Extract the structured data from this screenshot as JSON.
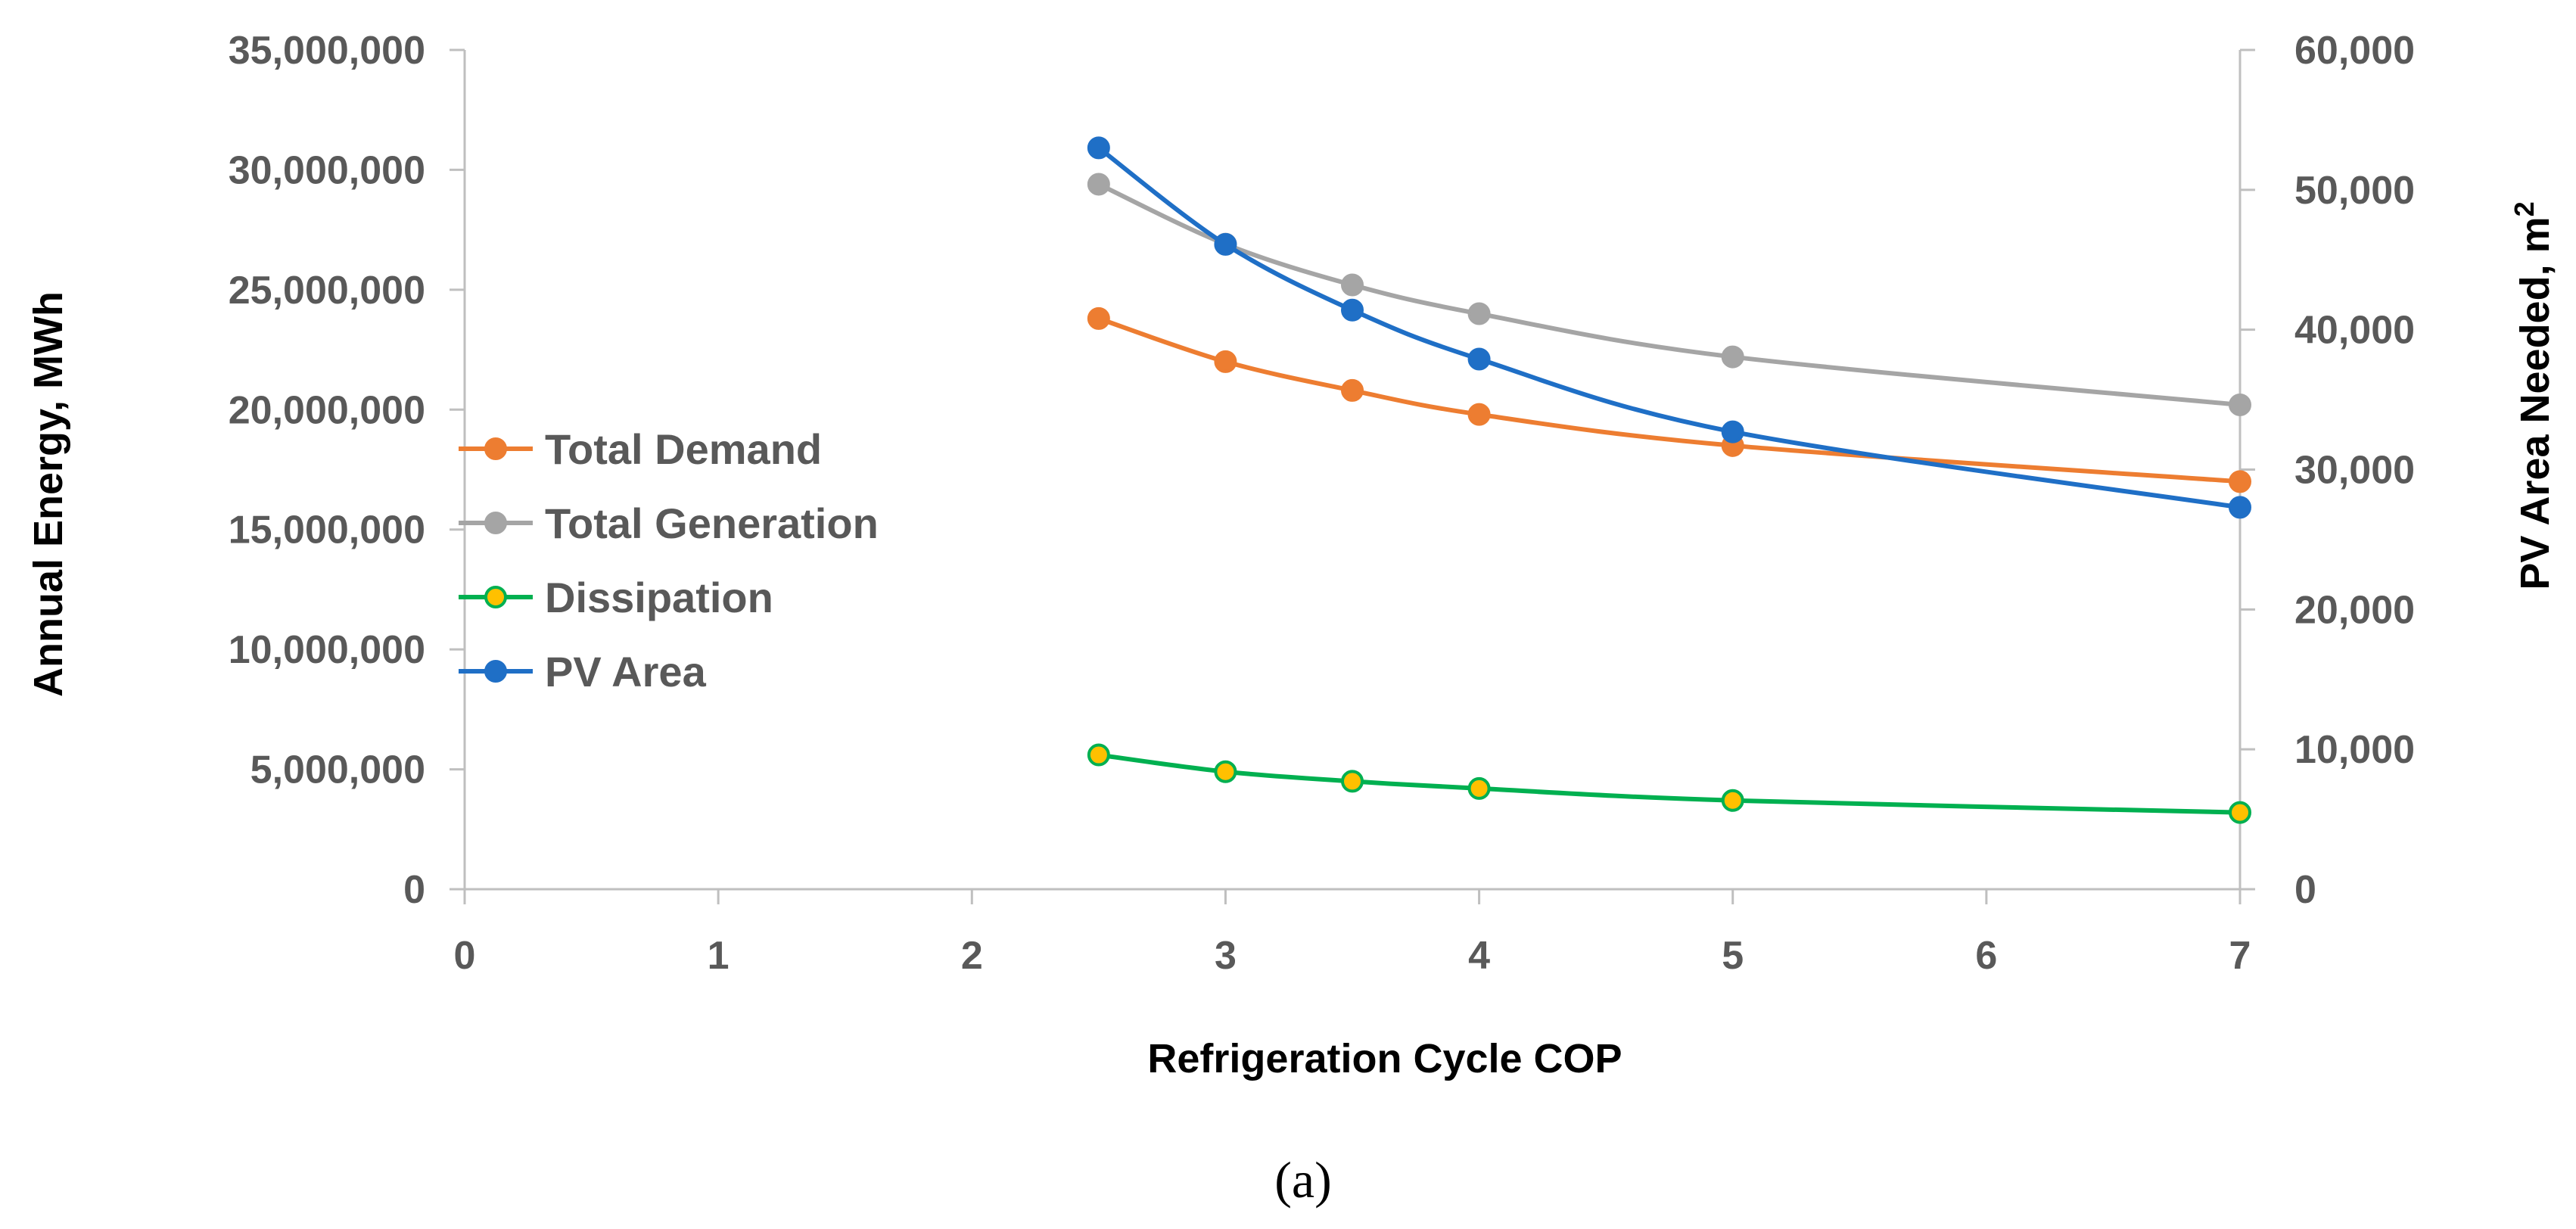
{
  "chart_data": {
    "type": "line",
    "title": "",
    "xlabel": "Refrigeration Cycle COP",
    "ylabel": "Annual Energy, MWh",
    "y2label_base": "PV Area Needed, m",
    "y2label_sup": "2",
    "caption": "(a)",
    "xlim": [
      0,
      7
    ],
    "ylim": [
      0,
      35000000
    ],
    "y2lim": [
      0,
      60000
    ],
    "x_ticks": [
      "0",
      "1",
      "2",
      "3",
      "4",
      "5",
      "6",
      "7"
    ],
    "y_ticks": [
      "0",
      "5,000,000",
      "10,000,000",
      "15,000,000",
      "20,000,000",
      "25,000,000",
      "30,000,000",
      "35,000,000"
    ],
    "y2_ticks": [
      "0",
      "10,000",
      "20,000",
      "30,000",
      "40,000",
      "50,000",
      "60,000"
    ],
    "x": [
      2.5,
      3,
      3.5,
      4,
      5,
      7
    ],
    "series": [
      {
        "name": "Total Demand",
        "axis": "left",
        "color": "#ED7D31",
        "marker_fill": "#ED7D31",
        "values": [
          23800000,
          22000000,
          20800000,
          19800000,
          18500000,
          17000000
        ]
      },
      {
        "name": "Total Generation",
        "axis": "left",
        "color": "#A5A5A5",
        "marker_fill": "#A5A5A5",
        "values": [
          29400000,
          26900000,
          25200000,
          24000000,
          22200000,
          20200000
        ]
      },
      {
        "name": "Dissipation",
        "axis": "left",
        "color": "#00B050",
        "marker_fill": "#FFC000",
        "values": [
          5600000,
          4900000,
          4500000,
          4200000,
          3700000,
          3200000
        ]
      },
      {
        "name": "PV Area",
        "axis": "right",
        "color": "#1F6FC6",
        "marker_fill": "#1F6FC6",
        "values": [
          53000,
          46100,
          41400,
          37900,
          32700,
          27300
        ]
      }
    ],
    "legend_position": "left"
  }
}
